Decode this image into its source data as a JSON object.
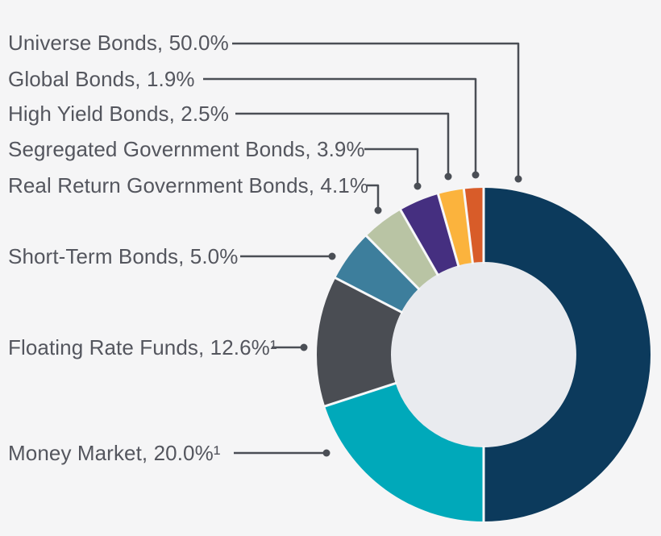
{
  "page": {
    "background": "#f5f5f6"
  },
  "chart_data": {
    "type": "pie",
    "subtype": "donut",
    "title": "",
    "direction": "clockwise",
    "start_angle_deg": 0,
    "hole_color": "#e9ebef",
    "separator_color": "#f7f8f9",
    "leader_line_color": "#4a4e55",
    "label_color": "#54565e",
    "series": [
      {
        "name": "Universe Bonds",
        "value": 50.0,
        "color": "#0c3a5c"
      },
      {
        "name": "Money Market",
        "value": 20.0,
        "color": "#00a9ba"
      },
      {
        "name": "Floating Rate Funds",
        "value": 12.6,
        "color": "#4a4d53"
      },
      {
        "name": "Short-Term Bonds",
        "value": 5.0,
        "color": "#3d7e9c"
      },
      {
        "name": "Real Return Government Bonds",
        "value": 4.1,
        "color": "#b9c4a4"
      },
      {
        "name": "Segregated Government Bonds",
        "value": 3.9,
        "color": "#452f80"
      },
      {
        "name": "High Yield Bonds",
        "value": 2.5,
        "color": "#fbb33d"
      },
      {
        "name": "Global Bonds",
        "value": 1.9,
        "color": "#d85c29"
      }
    ],
    "labels": [
      {
        "text": "Universe Bonds, 50.0%"
      },
      {
        "text": "Global Bonds, 1.9%"
      },
      {
        "text": "High Yield Bonds, 2.5%"
      },
      {
        "text": "Segregated Government Bonds, 3.9%"
      },
      {
        "text": "Real Return Government Bonds, 4.1%"
      },
      {
        "text": "Short-Term Bonds, 5.0%"
      },
      {
        "text": "Floating Rate Funds, 12.6%¹"
      },
      {
        "text": "Money Market, 20.0%¹"
      }
    ]
  }
}
